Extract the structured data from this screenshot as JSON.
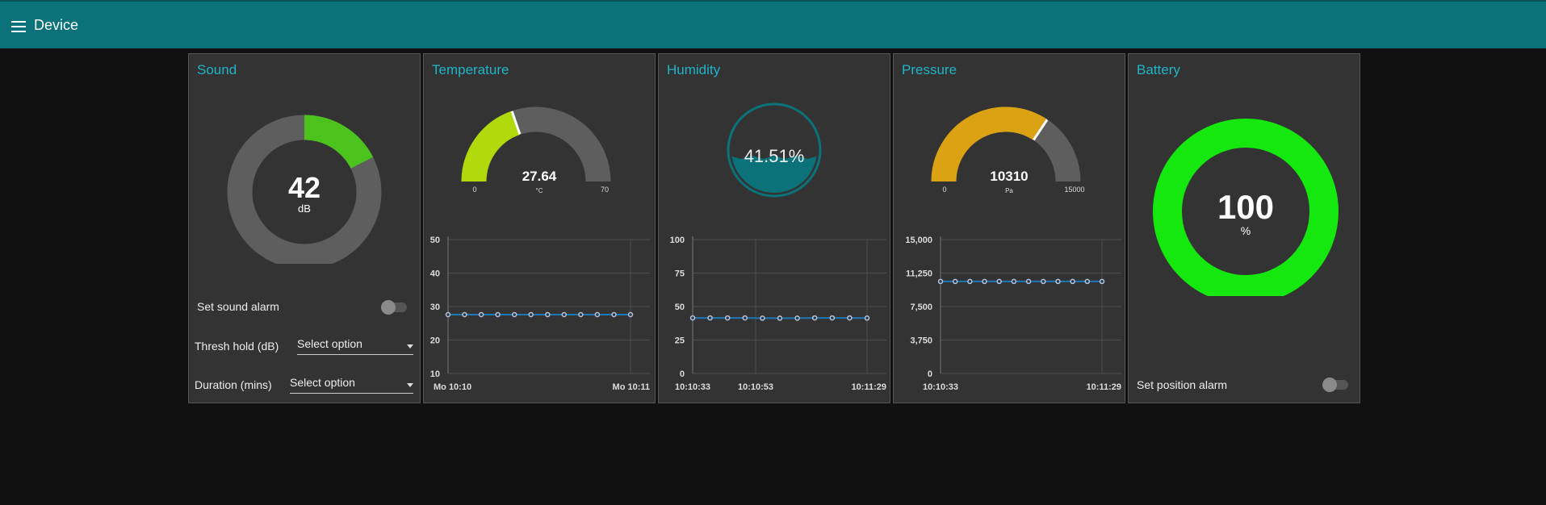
{
  "header": {
    "title": "Device",
    "menu_icon": "hamburger-icon"
  },
  "sound": {
    "title": "Sound",
    "value": "42",
    "unit": "dB",
    "level": 0.175,
    "alarm_label": "Set sound alarm",
    "threshold_label": "Thresh hold (dB)",
    "threshold_value": "Select option",
    "duration_label": "Duration (mins)",
    "duration_value": "Select option",
    "colors": {
      "fill": "#4cc21c",
      "track": "#5e5e5e"
    }
  },
  "temperature": {
    "title": "Temperature",
    "value": "27.64",
    "unit": "°C",
    "min": "0",
    "max": "70",
    "fraction": 0.395,
    "colors": {
      "fill": "#b2d90c",
      "track": "#5e5e5e"
    },
    "chart_data": {
      "type": "line",
      "yticks": [
        "50",
        "40",
        "30",
        "20",
        "10"
      ],
      "ylim": [
        10,
        50
      ],
      "xlabels": [
        "Mo 10:10",
        "Mo 10:11"
      ],
      "values": [
        27.6,
        27.6,
        27.6,
        27.6,
        27.6,
        27.6,
        27.6,
        27.6,
        27.6,
        27.6,
        27.6,
        27.6
      ]
    }
  },
  "humidity": {
    "title": "Humidity",
    "value": "41.51%",
    "fraction": 0.4151,
    "colors": {
      "liquid": "#0b727a",
      "ring": "#0b727a"
    },
    "chart_data": {
      "type": "line",
      "yticks": [
        "100",
        "75",
        "50",
        "25",
        "0"
      ],
      "ylim": [
        0,
        100
      ],
      "xlabels": [
        "10:10:33",
        "10:10:53",
        "10:11:29"
      ],
      "values": [
        41.5,
        41.5,
        41.5,
        41.5,
        41.3,
        41.3,
        41.3,
        41.5,
        41.5,
        41.5,
        41.4
      ]
    }
  },
  "pressure": {
    "title": "Pressure",
    "value": "10310",
    "unit": "Pa",
    "min": "0",
    "max": "15000",
    "fraction": 0.687,
    "colors": {
      "fill": "#dba214",
      "track": "#5e5e5e"
    },
    "chart_data": {
      "type": "line",
      "yticks": [
        "15,000",
        "11,250",
        "7,500",
        "3,750",
        "0"
      ],
      "ylim": [
        0,
        15000
      ],
      "xlabels": [
        "10:10:33",
        "10:11:29"
      ],
      "values": [
        10310,
        10310,
        10310,
        10310,
        10310,
        10310,
        10310,
        10310,
        10310,
        10310,
        10310,
        10310
      ]
    }
  },
  "battery": {
    "title": "Battery",
    "value": "100",
    "unit": "%",
    "alarm_label": "Set position alarm",
    "colors": {
      "fill": "#15e80f"
    }
  }
}
